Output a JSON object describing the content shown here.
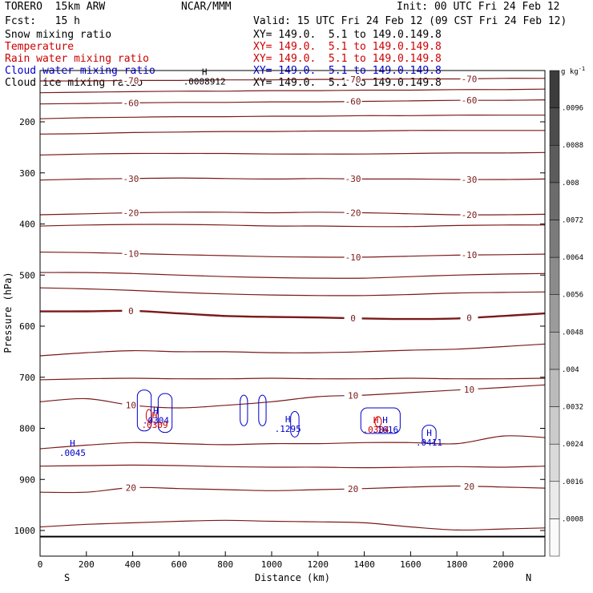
{
  "header": {
    "model": "TORERO  15km ARW",
    "center": "NCAR/MMM",
    "init": "Init: 00 UTC Fri 24 Feb 12",
    "fcst": "Fcst:   15 h",
    "valid": "Valid: 15 UTC Fri 24 Feb 12 (09 CST Fri 24 Feb 12)"
  },
  "fields": [
    {
      "name": "Snow mixing ratio",
      "xy": "XY= 149.0.  5.1 to 149.0.149.8",
      "color": "#000000"
    },
    {
      "name": "Temperature",
      "xy": "XY= 149.0.  5.1 to 149.0.149.8",
      "color": "#cc0000"
    },
    {
      "name": "Rain water mixing ratio",
      "xy": "XY= 149.0.  5.1 to 149.0.149.8",
      "color": "#cc0000"
    },
    {
      "name": "Cloud water mixing ratio",
      "xy": "XY= 149.0.  5.1 to 149.0.149.8",
      "color": "#0000cc"
    },
    {
      "name": "Cloud ice mixing ratio",
      "xy": "XY= 149.0.  5.1 to 149.0.149.8",
      "color": "#000000"
    }
  ],
  "chart_data": {
    "type": "contour cross-section",
    "xlabel": "Distance (km)",
    "ylabel": "Pressure (hPa)",
    "x_ticks": [
      0,
      200,
      400,
      600,
      800,
      1000,
      1200,
      1400,
      1600,
      1800,
      2000
    ],
    "x_ticks_text": [
      "0",
      "200",
      "400",
      "600",
      "800",
      "1000",
      "1200",
      "1400",
      "1600",
      "1800",
      "2000"
    ],
    "xlim": [
      0,
      2180
    ],
    "y_ticks": [
      200,
      300,
      400,
      500,
      600,
      700,
      800,
      900,
      1000
    ],
    "y_ticks_text": [
      "200",
      "300",
      "400",
      "500",
      "600",
      "700",
      "800",
      "900",
      "1000"
    ],
    "ylim": [
      100,
      1050
    ],
    "left_end": "S",
    "right_end": "N",
    "colorbar": {
      "unit_label": "g kg",
      "unit_exponent": "-1",
      "levels": [
        0.0008,
        0.0016,
        0.0024,
        0.0032,
        0.004,
        0.0048,
        0.0056,
        0.0064,
        0.0072,
        0.008,
        0.0088,
        0.0096
      ],
      "levels_text": [
        ".0008",
        ".0016",
        ".0024",
        ".0032",
        ".004",
        ".0048",
        ".0056",
        ".0064",
        ".0072",
        ".008",
        ".0088",
        ".0096"
      ]
    },
    "temperature_contours": [
      {
        "label": "-70",
        "x": [
          0,
          200,
          400,
          600,
          800,
          1000,
          1200,
          1400,
          1600,
          1800,
          2000,
          2180
        ],
        "p": [
          120,
          120,
          119,
          119,
          118,
          118,
          117,
          117,
          116,
          116,
          115,
          115
        ]
      },
      {
        "label": "",
        "x": [
          0,
          200,
          400,
          600,
          800,
          1000,
          1200,
          1400,
          1600,
          1800,
          2000,
          2180
        ],
        "p": [
          143,
          142,
          141,
          140,
          140,
          139,
          139,
          138,
          138,
          137,
          137,
          136
        ]
      },
      {
        "label": "-60",
        "x": [
          0,
          200,
          400,
          600,
          800,
          1000,
          1200,
          1400,
          1600,
          1800,
          2000,
          2180
        ],
        "p": [
          165,
          164,
          163,
          162,
          162,
          161,
          161,
          160,
          159,
          158,
          158,
          157
        ]
      },
      {
        "label": "",
        "x": [
          0,
          200,
          400,
          600,
          800,
          1000,
          1200,
          1400,
          1600,
          1800,
          2000,
          2180
        ],
        "p": [
          194,
          192,
          191,
          190,
          190,
          189,
          189,
          188,
          188,
          187,
          187,
          187
        ]
      },
      {
        "label": "",
        "x": [
          0,
          200,
          400,
          600,
          800,
          1000,
          1200,
          1400,
          1600,
          1800,
          2000,
          2180
        ],
        "p": [
          224,
          223,
          221,
          220,
          219,
          219,
          218,
          218,
          217,
          217,
          217,
          217
        ]
      },
      {
        "label": "",
        "x": [
          0,
          200,
          400,
          600,
          800,
          1000,
          1200,
          1400,
          1600,
          1800,
          2000,
          2180
        ],
        "p": [
          265,
          263,
          262,
          262,
          262,
          263,
          263,
          263,
          262,
          261,
          261,
          260
        ]
      },
      {
        "label": "-30",
        "x": [
          0,
          200,
          400,
          600,
          800,
          1000,
          1200,
          1400,
          1600,
          1800,
          2000,
          2180
        ],
        "p": [
          314,
          312,
          311,
          310,
          311,
          312,
          311,
          312,
          312,
          313,
          313,
          312
        ]
      },
      {
        "label": "-20",
        "x": [
          0,
          200,
          400,
          600,
          800,
          1000,
          1200,
          1400,
          1600,
          1800,
          2000,
          2180
        ],
        "p": [
          382,
          380,
          378,
          377,
          377,
          378,
          377,
          378,
          380,
          382,
          382,
          381
        ]
      },
      {
        "label": "",
        "x": [
          0,
          200,
          400,
          600,
          800,
          1000,
          1200,
          1400,
          1600,
          1800,
          2000,
          2180
        ],
        "p": [
          404,
          402,
          401,
          401,
          402,
          404,
          404,
          405,
          405,
          403,
          402,
          402
        ]
      },
      {
        "label": "-10",
        "x": [
          0,
          200,
          400,
          600,
          800,
          1000,
          1200,
          1400,
          1600,
          1800,
          2000,
          2180
        ],
        "p": [
          455,
          456,
          458,
          460,
          462,
          464,
          465,
          465,
          463,
          461,
          460,
          459
        ]
      },
      {
        "label": "",
        "x": [
          0,
          200,
          400,
          600,
          800,
          1000,
          1200,
          1400,
          1600,
          1800,
          2000,
          2180
        ],
        "p": [
          495,
          495,
          497,
          500,
          503,
          505,
          506,
          506,
          503,
          500,
          498,
          497
        ]
      },
      {
        "label": "",
        "x": [
          0,
          200,
          400,
          600,
          800,
          1000,
          1200,
          1400,
          1600,
          1800,
          2000,
          2180
        ],
        "p": [
          525,
          527,
          530,
          534,
          537,
          539,
          540,
          540,
          538,
          535,
          534,
          533
        ]
      },
      {
        "label": "0",
        "x": [
          0,
          200,
          400,
          600,
          800,
          1000,
          1200,
          1400,
          1600,
          1800,
          2000,
          2180
        ],
        "p": [
          571,
          571,
          570,
          575,
          580,
          582,
          583,
          585,
          586,
          585,
          580,
          575
        ],
        "bold": true
      },
      {
        "label": "",
        "x": [
          0,
          200,
          400,
          600,
          800,
          1000,
          1200,
          1400,
          1600,
          1800,
          2000,
          2180
        ],
        "p": [
          658,
          652,
          648,
          650,
          650,
          652,
          652,
          650,
          647,
          645,
          640,
          635
        ]
      },
      {
        "label": "",
        "x": [
          0,
          200,
          400,
          600,
          800,
          1000,
          1200,
          1400,
          1600,
          1800,
          2000,
          2180
        ],
        "p": [
          705,
          703,
          702,
          703,
          703,
          702,
          703,
          703,
          702,
          703,
          703,
          702
        ]
      },
      {
        "label": "10",
        "x": [
          0,
          200,
          400,
          600,
          800,
          1000,
          1200,
          1400,
          1600,
          1800,
          2000,
          2180
        ],
        "p": [
          748,
          742,
          755,
          760,
          755,
          748,
          738,
          735,
          730,
          725,
          720,
          715
        ]
      },
      {
        "label": "",
        "x": [
          0,
          200,
          400,
          600,
          800,
          1000,
          1200,
          1400,
          1600,
          1800,
          2000,
          2180
        ],
        "p": [
          840,
          833,
          828,
          830,
          832,
          830,
          830,
          828,
          828,
          830,
          815,
          818
        ]
      },
      {
        "label": "",
        "x": [
          0,
          200,
          400,
          600,
          800,
          1000,
          1200,
          1400,
          1600,
          1800,
          2000,
          2180
        ],
        "p": [
          874,
          873,
          872,
          873,
          875,
          876,
          876,
          877,
          876,
          875,
          876,
          874
        ]
      },
      {
        "label": "20",
        "x": [
          0,
          200,
          400,
          600,
          800,
          1000,
          1200,
          1400,
          1600,
          1800,
          2000,
          2180
        ],
        "p": [
          925,
          925,
          916,
          918,
          920,
          922,
          920,
          918,
          915,
          913,
          915,
          917
        ]
      },
      {
        "label": "",
        "x": [
          0,
          200,
          400,
          600,
          800,
          1000,
          1200,
          1400,
          1600,
          1800,
          2000,
          2180
        ],
        "p": [
          993,
          988,
          985,
          982,
          980,
          982,
          983,
          985,
          993,
          999,
          997,
          995
        ]
      }
    ],
    "hl_labels": [
      {
        "letter": "H",
        "value": ".0045",
        "x": 140,
        "p": 835,
        "color": "#0000cc"
      },
      {
        "letter": "H",
        "value": ".0304",
        "x": 500,
        "p": 772,
        "color": "#0000cc"
      },
      {
        "letter": "H",
        "value": ".0309",
        "x": 495,
        "p": 780,
        "color": "#cc0000"
      },
      {
        "letter": "H",
        "value": ".1295",
        "x": 1070,
        "p": 788,
        "color": "#0000cc"
      },
      {
        "letter": "H",
        "value": ".0384",
        "x": 1450,
        "p": 790,
        "color": "#cc0000"
      },
      {
        "letter": "H",
        "value": ".1616",
        "x": 1490,
        "p": 790,
        "color": "#0000cc"
      },
      {
        "letter": "H",
        "value": ".0411",
        "x": 1680,
        "p": 815,
        "color": "#0000cc"
      },
      {
        "letter": "H",
        "value": ".0008912",
        "x": 710,
        "p": 108,
        "color": "#000000"
      }
    ]
  }
}
